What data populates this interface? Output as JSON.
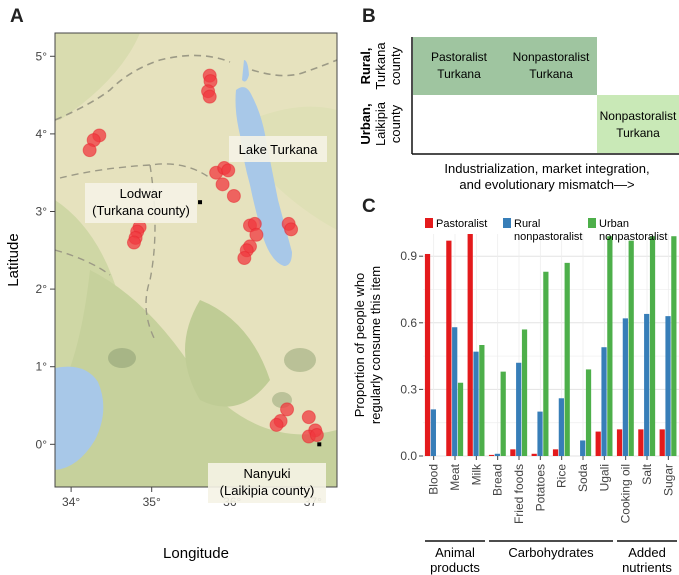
{
  "panels": {
    "a": "A",
    "b": "B",
    "c": "C"
  },
  "map": {
    "xlabel": "Longitude",
    "ylabel": "Latitude",
    "x_ticks": [
      {
        "value": 34,
        "label": "34°"
      },
      {
        "value": 35,
        "label": "35°"
      },
      {
        "value": 36,
        "label": "36°"
      },
      {
        "value": 37,
        "label": "37°"
      }
    ],
    "y_ticks": [
      {
        "value": 0,
        "label": "0°"
      },
      {
        "value": 1,
        "label": "1°"
      },
      {
        "value": 2,
        "label": "2°"
      },
      {
        "value": 3,
        "label": "3°"
      },
      {
        "value": 4,
        "label": "4°"
      },
      {
        "value": 5,
        "label": "5°"
      }
    ],
    "xlim": [
      33.8,
      37.3
    ],
    "ylim": [
      -0.55,
      5.3
    ],
    "lake_label": "Lake Turkana",
    "town1": {
      "line1": "Lodwar",
      "line2": "(Turkana county)",
      "lon": 35.6,
      "lat": 3.12
    },
    "town2": {
      "line1": "Nanyuki",
      "line2": "(Laikipia county)",
      "lon": 37.08,
      "lat": 0.0
    },
    "point_color": "#f0383f",
    "points": [
      {
        "lon": 34.35,
        "lat": 3.98
      },
      {
        "lon": 34.28,
        "lat": 3.92
      },
      {
        "lon": 34.23,
        "lat": 3.79
      },
      {
        "lon": 34.85,
        "lat": 2.8
      },
      {
        "lon": 34.82,
        "lat": 2.74
      },
      {
        "lon": 34.8,
        "lat": 2.66
      },
      {
        "lon": 34.78,
        "lat": 2.6
      },
      {
        "lon": 35.72,
        "lat": 4.75
      },
      {
        "lon": 35.73,
        "lat": 4.68
      },
      {
        "lon": 35.7,
        "lat": 4.55
      },
      {
        "lon": 35.72,
        "lat": 4.48
      },
      {
        "lon": 35.8,
        "lat": 3.5
      },
      {
        "lon": 35.9,
        "lat": 3.56
      },
      {
        "lon": 35.95,
        "lat": 3.53
      },
      {
        "lon": 35.88,
        "lat": 3.35
      },
      {
        "lon": 36.02,
        "lat": 3.2
      },
      {
        "lon": 36.22,
        "lat": 2.82
      },
      {
        "lon": 36.28,
        "lat": 2.84
      },
      {
        "lon": 36.3,
        "lat": 2.7
      },
      {
        "lon": 36.22,
        "lat": 2.55
      },
      {
        "lon": 36.18,
        "lat": 2.5
      },
      {
        "lon": 36.15,
        "lat": 2.4
      },
      {
        "lon": 36.7,
        "lat": 2.84
      },
      {
        "lon": 36.73,
        "lat": 2.77
      },
      {
        "lon": 36.68,
        "lat": 0.45
      },
      {
        "lon": 36.6,
        "lat": 0.3
      },
      {
        "lon": 36.55,
        "lat": 0.25
      },
      {
        "lon": 36.95,
        "lat": 0.35
      },
      {
        "lon": 37.03,
        "lat": 0.18
      },
      {
        "lon": 36.95,
        "lat": 0.1
      },
      {
        "lon": 37.05,
        "lat": 0.12
      }
    ]
  },
  "diagram": {
    "row1_label_bold": "Rural,",
    "row1_label": "Turkana county",
    "row1_label_l1": "Turkana",
    "row1_label_l2": "county",
    "row2_label_bold": "Urban,",
    "row2_label_l1": "Laikipia",
    "row2_label_l2": "county",
    "cells": [
      {
        "line1": "Pastoralist",
        "line2": "Turkana"
      },
      {
        "line1": "Nonpastoralist",
        "line2": "Turkana"
      },
      {
        "line1": "Nonpastoralist",
        "line2": "Turkana"
      }
    ],
    "cell_colors": [
      "#9fc5a0",
      "#c9e9b7"
    ],
    "axis_line1": "Industrialization, market integration,",
    "axis_line2": "and evolutionary mismatch—>"
  },
  "chart_data": {
    "type": "bar",
    "ylabel": "Proportion of people who regularly consume this item",
    "ylabel_l1": "Proportion of people who",
    "ylabel_l2": "regularly consume this item",
    "ylim": [
      0,
      1.0
    ],
    "yticks": [
      0.0,
      0.3,
      0.6,
      0.9
    ],
    "ytick_labels": [
      "0.0",
      "0.3",
      "0.6",
      "0.9"
    ],
    "grid": true,
    "legend_placement": "top",
    "categories": [
      "Blood",
      "Meat",
      "Milk",
      "Bread",
      "Fried foods",
      "Potatoes",
      "Rice",
      "Soda",
      "Ugali",
      "Cooking oil",
      "Salt",
      "Sugar"
    ],
    "series": [
      {
        "name": "Pastoralist",
        "name_l1": "Pastoralist",
        "name_l2": "",
        "color": "#e41a1c",
        "values": [
          0.91,
          0.97,
          1.0,
          0.005,
          0.03,
          0.01,
          0.03,
          0.0,
          0.11,
          0.12,
          0.12,
          0.12
        ]
      },
      {
        "name": "Rural nonpastoralist",
        "name_l1": "Rural",
        "name_l2": "nonpastoralist",
        "color": "#377eb8",
        "values": [
          0.21,
          0.58,
          0.47,
          0.01,
          0.42,
          0.2,
          0.26,
          0.07,
          0.49,
          0.62,
          0.64,
          0.63
        ]
      },
      {
        "name": "Urban nonpastoralist",
        "name_l1": "Urban",
        "name_l2": "nonpastoralist",
        "color": "#4daf4a",
        "values": [
          0.0,
          0.33,
          0.5,
          0.38,
          0.57,
          0.83,
          0.87,
          0.39,
          0.99,
          0.97,
          0.99,
          0.99
        ]
      }
    ],
    "groups": [
      {
        "line1": "Animal",
        "line2": "products",
        "from": 0,
        "to": 2
      },
      {
        "line1": "Carbohydrates",
        "line2": "",
        "from": 3,
        "to": 8
      },
      {
        "line1": "Added",
        "line2": "nutrients",
        "from": 9,
        "to": 11
      }
    ]
  }
}
